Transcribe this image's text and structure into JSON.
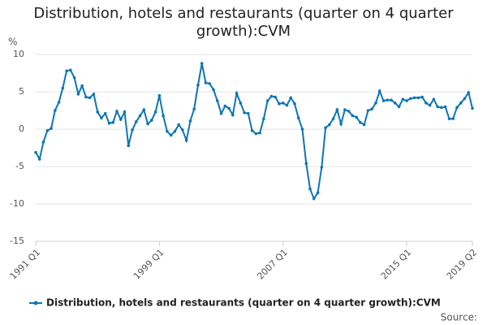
{
  "chart_data": {
    "type": "line",
    "title": "Distribution, hotels and restaurants (quarter on 4 quarter growth):CVM",
    "y_label": "%",
    "source": "Source:",
    "categories": [
      "1991 Q1",
      null,
      null,
      null,
      null,
      null,
      null,
      null,
      null,
      null,
      null,
      null,
      null,
      null,
      null,
      null,
      null,
      null,
      null,
      null,
      null,
      null,
      null,
      null,
      null,
      null,
      null,
      null,
      null,
      null,
      null,
      null,
      "1999 Q1",
      null,
      null,
      null,
      null,
      null,
      null,
      null,
      null,
      null,
      null,
      null,
      null,
      null,
      null,
      null,
      null,
      null,
      null,
      null,
      null,
      null,
      null,
      null,
      null,
      null,
      null,
      null,
      null,
      null,
      null,
      null,
      "2007 Q1",
      null,
      null,
      null,
      null,
      null,
      null,
      null,
      null,
      null,
      null,
      null,
      null,
      null,
      null,
      null,
      null,
      null,
      null,
      null,
      null,
      null,
      null,
      null,
      null,
      null,
      null,
      null,
      null,
      null,
      null,
      null,
      "2015 Q1",
      null,
      null,
      null,
      null,
      null,
      null,
      null,
      null,
      null,
      null,
      null,
      null,
      null,
      null,
      null,
      null,
      "2019 Q2"
    ],
    "series": [
      {
        "name": "Distribution, hotels and restaurants (quarter on 4 quarter growth):CVM",
        "color": "#0f75b5",
        "values": [
          -3.1,
          -4.0,
          -1.7,
          -0.2,
          0.1,
          2.5,
          3.6,
          5.5,
          7.8,
          7.9,
          6.9,
          4.7,
          5.8,
          4.3,
          4.2,
          4.7,
          2.3,
          1.5,
          2.1,
          0.8,
          0.9,
          2.4,
          1.3,
          2.3,
          -2.2,
          -0.1,
          1.0,
          1.8,
          2.6,
          0.7,
          1.2,
          2.3,
          4.5,
          1.8,
          -0.3,
          -0.8,
          -0.3,
          0.6,
          -0.1,
          -1.5,
          1.1,
          2.7,
          5.9,
          8.8,
          6.2,
          6.1,
          5.3,
          3.8,
          2.1,
          3.1,
          2.8,
          1.9,
          4.8,
          3.5,
          2.2,
          2.1,
          -0.2,
          -0.6,
          -0.5,
          1.4,
          3.8,
          4.4,
          4.3,
          3.4,
          3.5,
          3.2,
          4.2,
          3.4,
          1.5,
          0.0,
          -4.6,
          -8.0,
          -9.3,
          -8.5,
          -5.1,
          0.2,
          0.6,
          1.4,
          2.6,
          0.7,
          2.6,
          2.4,
          1.8,
          1.6,
          0.9,
          0.6,
          2.5,
          2.7,
          3.5,
          5.1,
          3.8,
          3.9,
          3.9,
          3.5,
          3.0,
          4.0,
          3.8,
          4.1,
          4.2,
          4.2,
          4.3,
          3.5,
          3.2,
          4.0,
          3.0,
          2.9,
          3.0,
          1.4,
          1.4,
          2.9,
          3.5,
          4.1,
          4.9,
          2.8
        ]
      }
    ],
    "ylim": [
      -15,
      10
    ],
    "yticks": [
      -15,
      -10,
      -5,
      0,
      5,
      10
    ],
    "grid": true,
    "legend": "bottom"
  }
}
